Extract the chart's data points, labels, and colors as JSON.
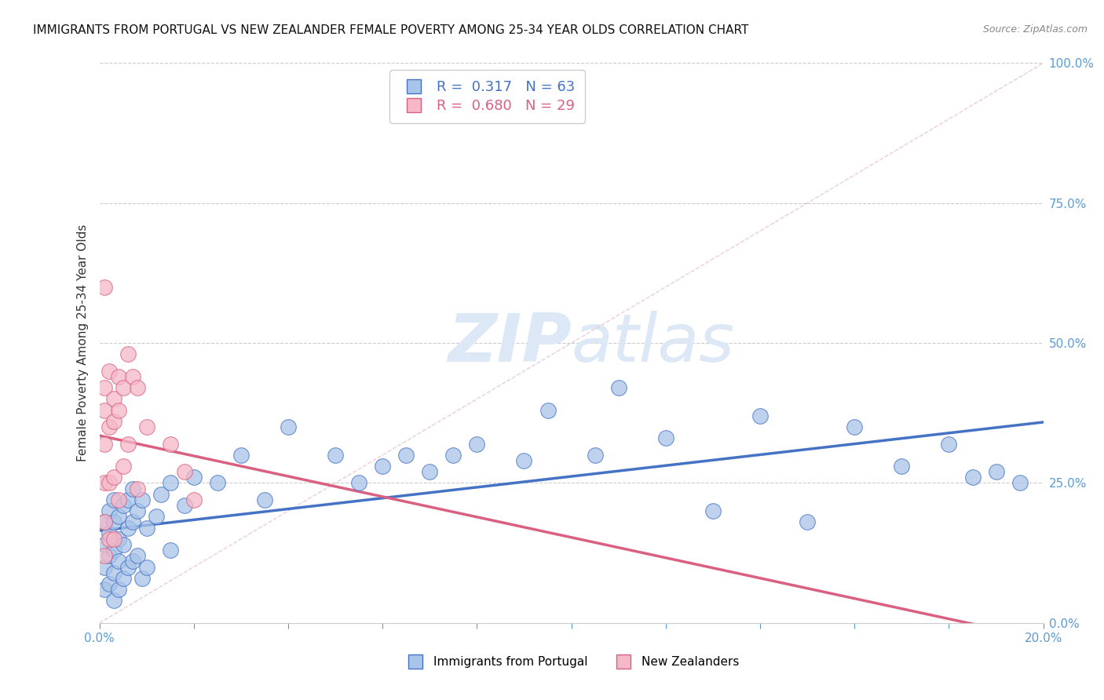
{
  "title": "IMMIGRANTS FROM PORTUGAL VS NEW ZEALANDER FEMALE POVERTY AMONG 25-34 YEAR OLDS CORRELATION CHART",
  "source": "Source: ZipAtlas.com",
  "legend_label_blue": "Immigrants from Portugal",
  "legend_label_pink": "New Zealanders",
  "r_blue": 0.317,
  "n_blue": 63,
  "r_pink": 0.68,
  "n_pink": 29,
  "blue_face_color": "#a8c4e8",
  "blue_edge_color": "#4472c4",
  "pink_face_color": "#f5b8c8",
  "pink_edge_color": "#d96080",
  "blue_trend_color": "#4472c4",
  "pink_trend_color": "#d96080",
  "diag_color": "#e8c0c8",
  "right_axis_color": "#5b9bd5",
  "watermark_color": "#dce8f5",
  "xlim": [
    0.0,
    0.2
  ],
  "ylim": [
    0.0,
    1.0
  ],
  "blue_x": [
    0.001,
    0.001,
    0.001,
    0.001,
    0.002,
    0.002,
    0.002,
    0.002,
    0.003,
    0.003,
    0.003,
    0.003,
    0.003,
    0.004,
    0.004,
    0.004,
    0.004,
    0.005,
    0.005,
    0.005,
    0.006,
    0.006,
    0.006,
    0.007,
    0.007,
    0.007,
    0.008,
    0.008,
    0.009,
    0.009,
    0.01,
    0.01,
    0.012,
    0.013,
    0.015,
    0.015,
    0.018,
    0.02,
    0.025,
    0.03,
    0.035,
    0.04,
    0.05,
    0.055,
    0.06,
    0.065,
    0.07,
    0.075,
    0.08,
    0.09,
    0.095,
    0.105,
    0.11,
    0.12,
    0.13,
    0.14,
    0.15,
    0.16,
    0.17,
    0.18,
    0.185,
    0.19,
    0.195
  ],
  "blue_y": [
    0.18,
    0.14,
    0.1,
    0.06,
    0.2,
    0.16,
    0.12,
    0.07,
    0.22,
    0.18,
    0.13,
    0.09,
    0.04,
    0.19,
    0.15,
    0.11,
    0.06,
    0.21,
    0.14,
    0.08,
    0.22,
    0.17,
    0.1,
    0.24,
    0.18,
    0.11,
    0.2,
    0.12,
    0.22,
    0.08,
    0.17,
    0.1,
    0.19,
    0.23,
    0.25,
    0.13,
    0.21,
    0.26,
    0.25,
    0.3,
    0.22,
    0.35,
    0.3,
    0.25,
    0.28,
    0.3,
    0.27,
    0.3,
    0.32,
    0.29,
    0.38,
    0.3,
    0.42,
    0.33,
    0.2,
    0.37,
    0.18,
    0.35,
    0.28,
    0.32,
    0.26,
    0.27,
    0.25
  ],
  "pink_x": [
    0.001,
    0.001,
    0.001,
    0.001,
    0.001,
    0.001,
    0.002,
    0.002,
    0.002,
    0.002,
    0.003,
    0.003,
    0.003,
    0.003,
    0.004,
    0.004,
    0.004,
    0.005,
    0.005,
    0.006,
    0.006,
    0.007,
    0.008,
    0.008,
    0.01,
    0.015,
    0.018,
    0.02,
    0.001
  ],
  "pink_y": [
    0.42,
    0.38,
    0.32,
    0.25,
    0.18,
    0.12,
    0.45,
    0.35,
    0.25,
    0.15,
    0.4,
    0.36,
    0.26,
    0.15,
    0.44,
    0.38,
    0.22,
    0.42,
    0.28,
    0.48,
    0.32,
    0.44,
    0.42,
    0.24,
    0.35,
    0.32,
    0.27,
    0.22,
    0.6
  ]
}
